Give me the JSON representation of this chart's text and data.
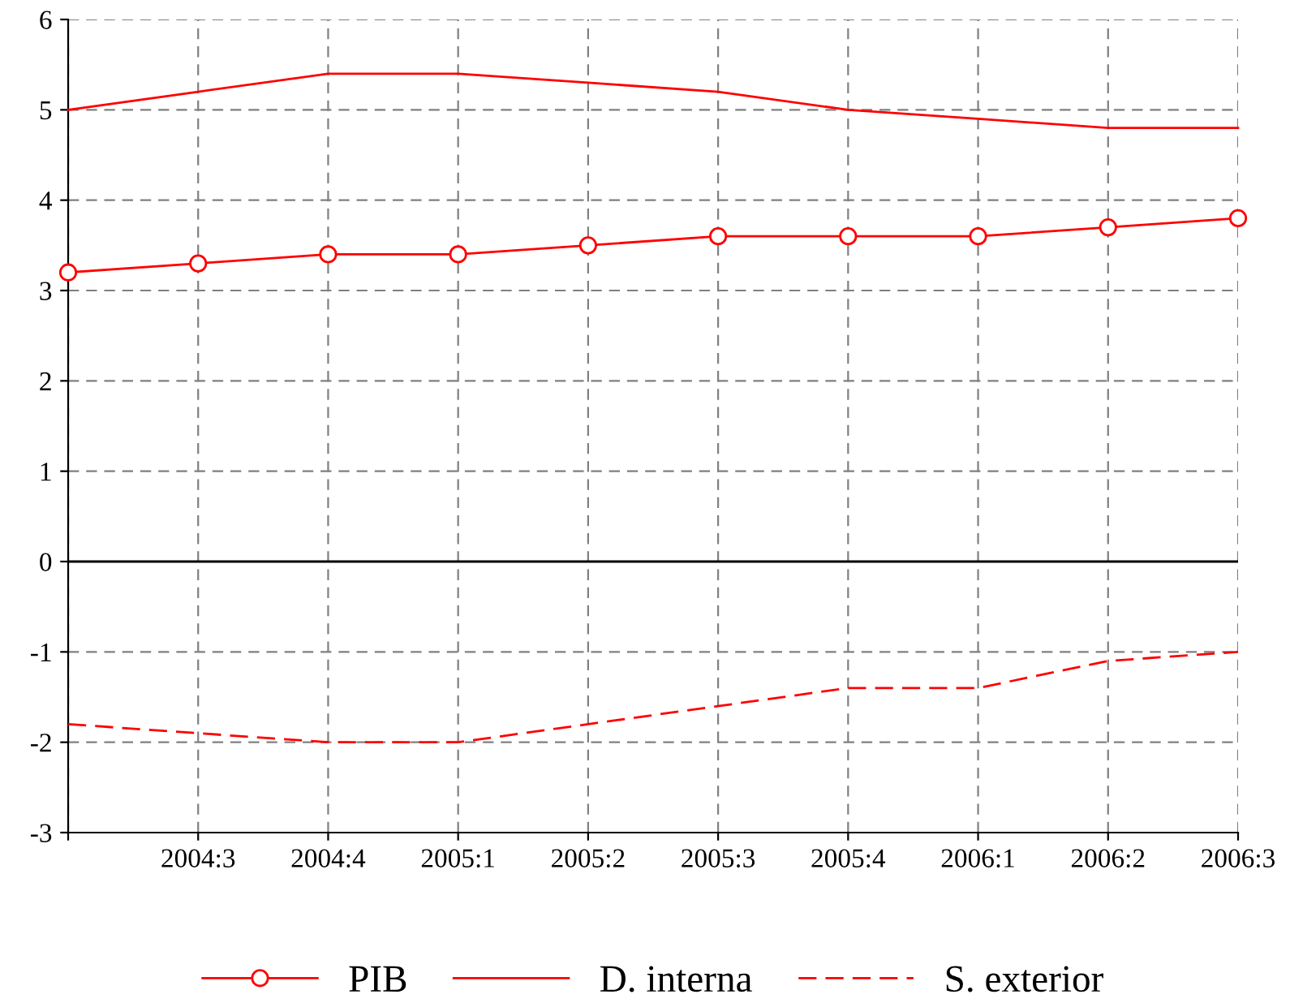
{
  "chart_data": {
    "type": "line",
    "categories": [
      null,
      "2004:3",
      "2004:4",
      "2005:1",
      "2005:2",
      "2005:3",
      "2005:4",
      "2006:1",
      "2006:2",
      "2006:3"
    ],
    "series": [
      {
        "name": "PIB",
        "color": "#ff0000",
        "marker": "circle",
        "line_style": "solid",
        "values": [
          3.2,
          3.3,
          3.4,
          3.4,
          3.5,
          3.6,
          3.6,
          3.6,
          3.7,
          3.8
        ]
      },
      {
        "name": "D. interna",
        "color": "#ff0000",
        "marker": "none",
        "line_style": "solid",
        "values": [
          5.0,
          5.2,
          5.4,
          5.4,
          5.3,
          5.2,
          5.0,
          4.9,
          4.8,
          4.8
        ]
      },
      {
        "name": "S. exterior",
        "color": "#ff0000",
        "marker": "none",
        "line_style": "dashed",
        "values": [
          -1.8,
          -1.9,
          -2.0,
          -2.0,
          -1.8,
          -1.6,
          -1.4,
          -1.4,
          -1.1,
          -1.0
        ]
      }
    ],
    "ylim": [
      -3,
      6
    ],
    "yticks": [
      -3,
      -2,
      -1,
      0,
      1,
      2,
      3,
      4,
      5,
      6
    ],
    "grid": true,
    "legend": "bottom",
    "ref_lines": [
      {
        "axis": "y",
        "value": 0,
        "color": "#000000",
        "line_style": "solid"
      }
    ]
  }
}
